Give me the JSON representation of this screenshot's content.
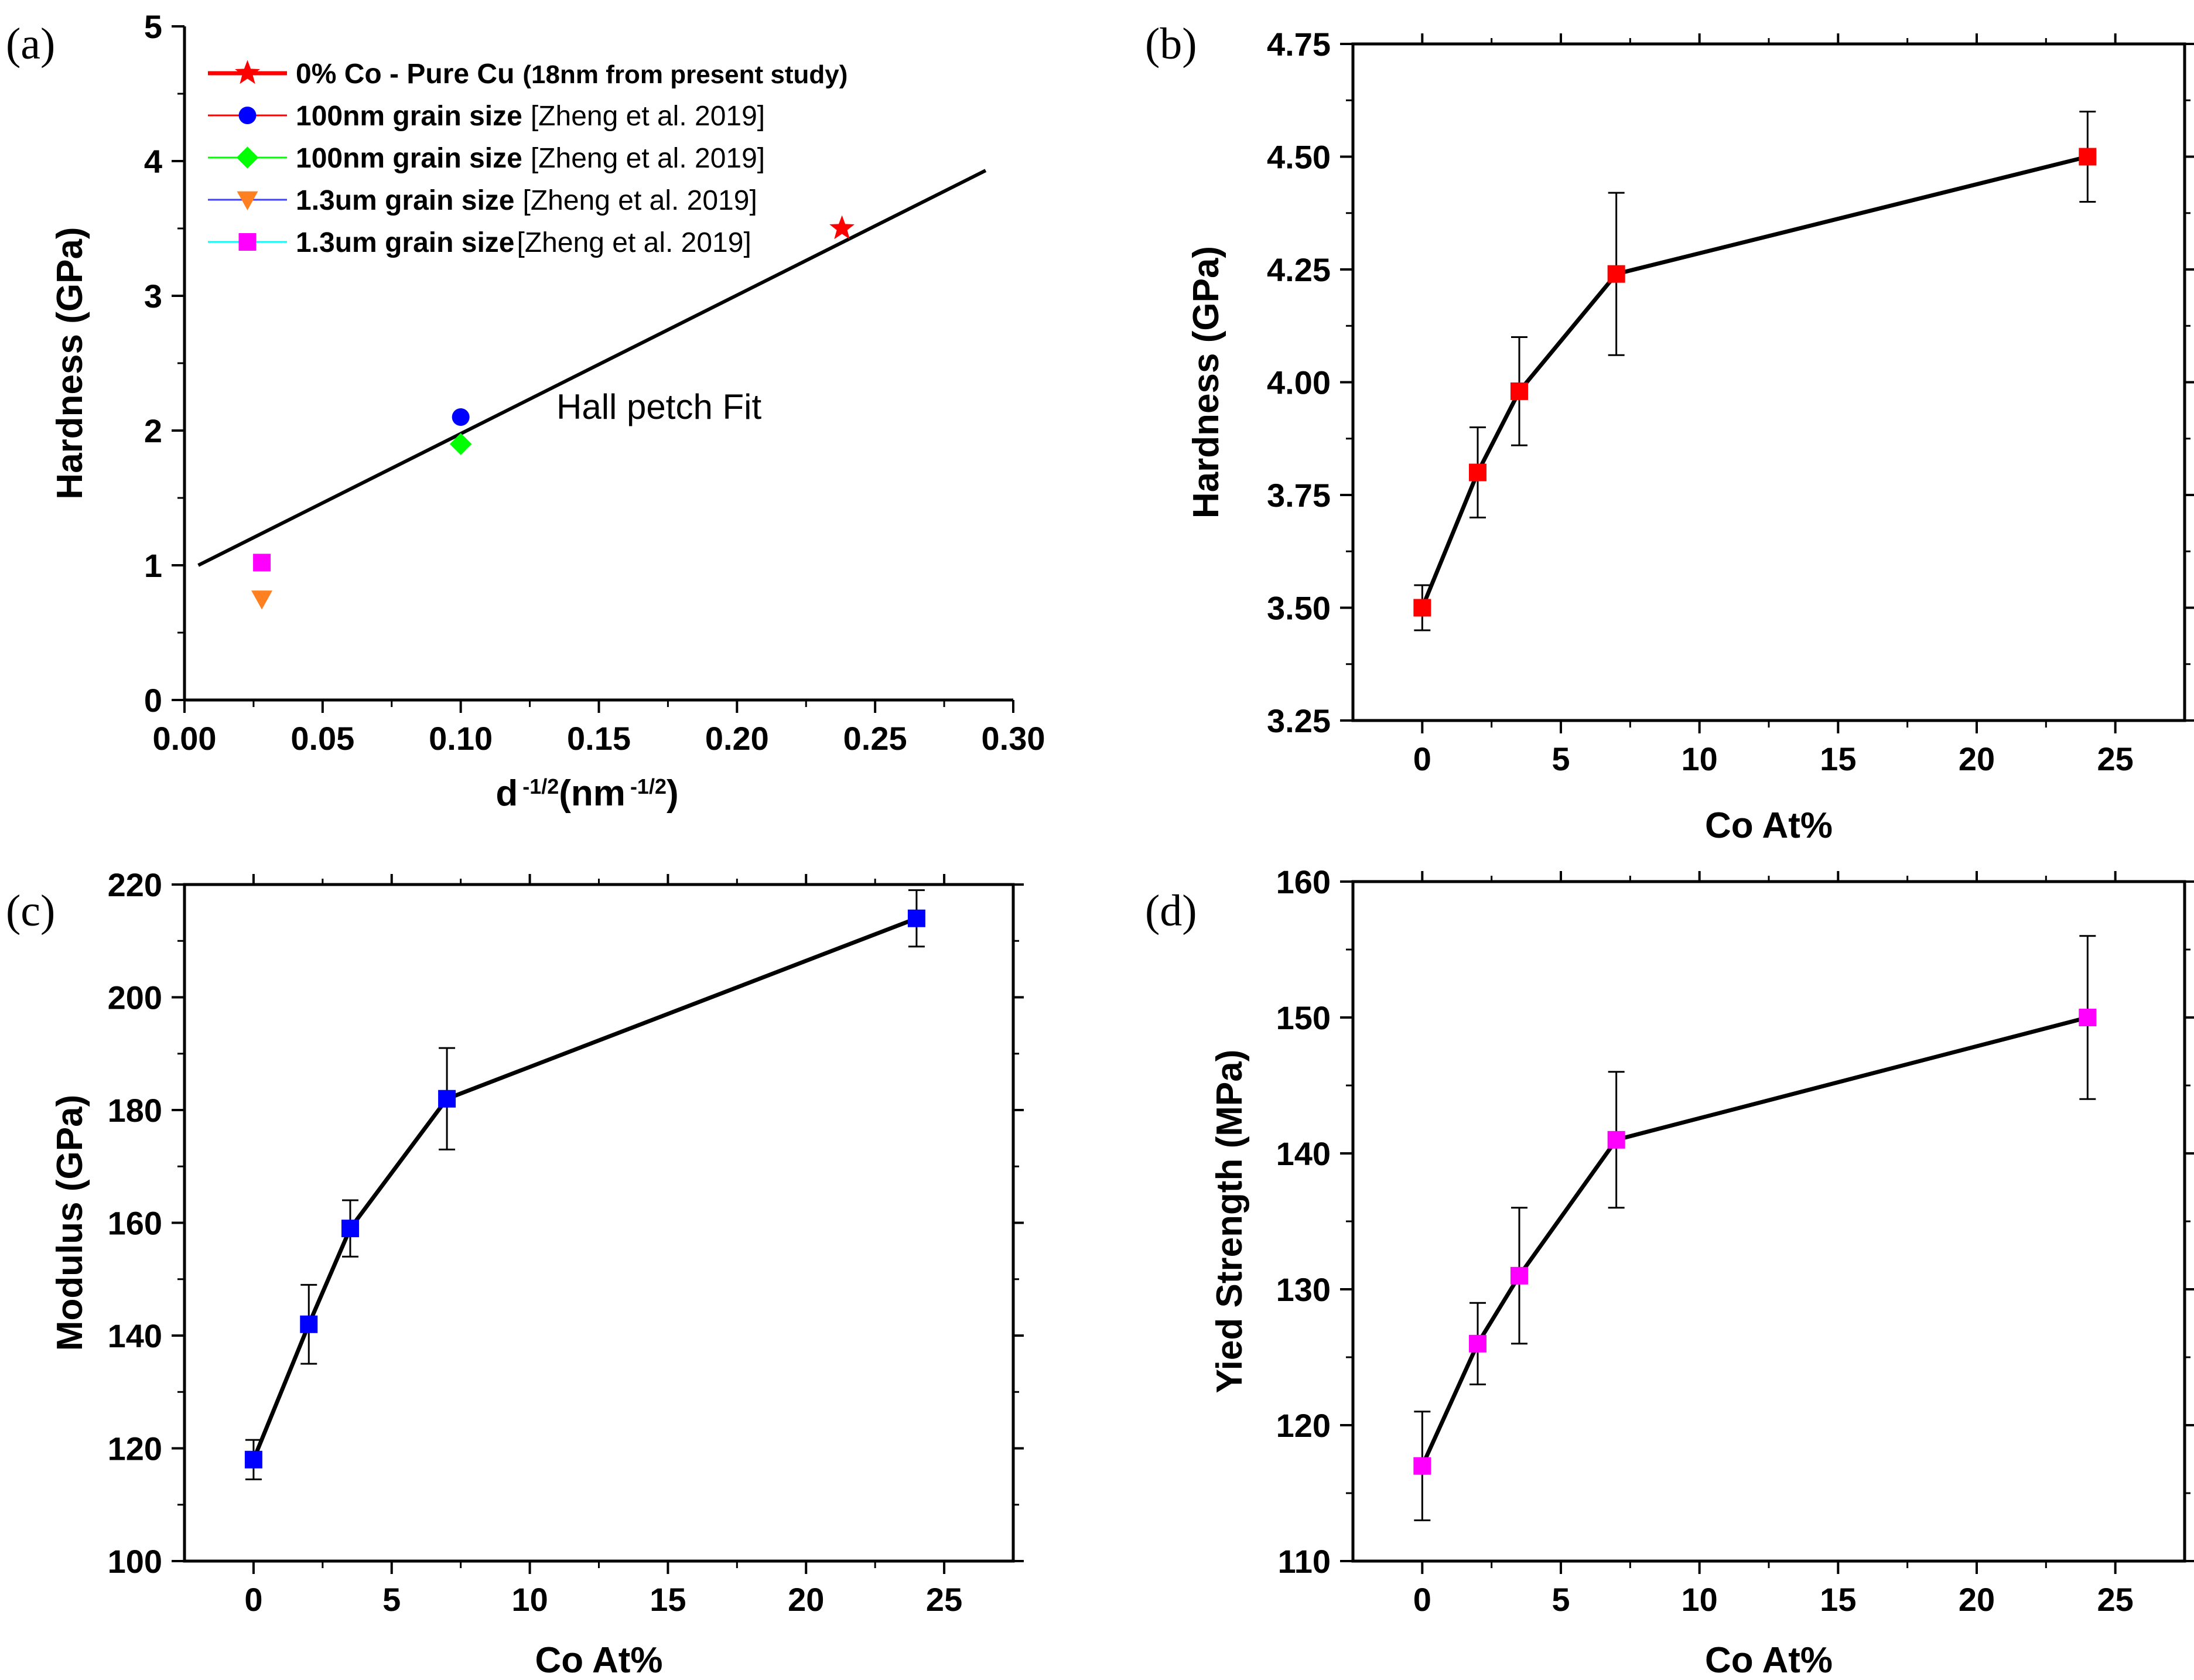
{
  "chart_data": [
    {
      "type": "scatter",
      "panel": "(a)",
      "xlabel": "d",
      "xlabel_sup1": "-1/2",
      "xlabel_unit": "(nm",
      "xlabel_sup2": "-1/2",
      "xlabel_close": ")",
      "ylabel": "Hardness (GPa)",
      "xlim": [
        0.0,
        0.3
      ],
      "ylim": [
        0,
        5
      ],
      "xticks": [
        "0.00",
        "0.05",
        "0.10",
        "0.15",
        "0.20",
        "0.25",
        "0.30"
      ],
      "yticks": [
        "0",
        "1",
        "2",
        "3",
        "4",
        "5"
      ],
      "series": [
        {
          "name": "0% Co - Pure Cu",
          "ref": "(18nm from present study)",
          "marker": "star",
          "color": "#ff0000",
          "x": [
            0.238
          ],
          "y": [
            3.5
          ]
        },
        {
          "name": "100nm grain size",
          "ref": "[Zheng et al. 2019]",
          "marker": "circle",
          "color": "#0000ff",
          "x": [
            0.1
          ],
          "y": [
            2.1
          ]
        },
        {
          "name": "100nm grain size",
          "ref": "[Zheng et al. 2019]",
          "marker": "diamond",
          "color": "#00ff00",
          "x": [
            0.1
          ],
          "y": [
            1.9
          ]
        },
        {
          "name": "1.3um grain size",
          "ref": "[Zheng et al. 2019]",
          "marker": "triangle-down",
          "color": "#ff8020",
          "x": [
            0.028
          ],
          "y": [
            0.75
          ]
        },
        {
          "name": "1.3um grain size",
          "ref": "[Zheng et al. 2019]",
          "marker": "square",
          "color": "#ff00ff",
          "x": [
            0.028
          ],
          "y": [
            1.02
          ]
        }
      ],
      "legend_line_colors": [
        "#ff0000",
        "#ff0000",
        "#00ff00",
        "#4040ff",
        "#00ffff"
      ],
      "fit": {
        "label": "Hall petch Fit",
        "x": [
          0.005,
          0.29
        ],
        "y": [
          1.0,
          3.93
        ]
      }
    },
    {
      "type": "line",
      "panel": "(b)",
      "xlabel": "Co At%",
      "ylabel": "Hardness (GPa)",
      "xlim": [
        -2.5,
        27.5
      ],
      "ylim": [
        3.25,
        4.75
      ],
      "xticks": [
        "0",
        "5",
        "10",
        "15",
        "20",
        "25"
      ],
      "yticks": [
        "3.25",
        "3.50",
        "3.75",
        "4.00",
        "4.25",
        "4.50",
        "4.75"
      ],
      "x": [
        0,
        2,
        3.5,
        7,
        24
      ],
      "y": [
        3.5,
        3.8,
        3.98,
        4.24,
        4.5
      ],
      "err": [
        0.05,
        0.1,
        0.12,
        0.18,
        0.1
      ],
      "color": "#ff0000"
    },
    {
      "type": "line",
      "panel": "(c)",
      "xlabel": "Co At%",
      "ylabel": "Modulus (GPa)",
      "xlim": [
        -2.5,
        27.5
      ],
      "ylim": [
        100,
        220
      ],
      "xticks": [
        "0",
        "5",
        "10",
        "15",
        "20",
        "25"
      ],
      "yticks": [
        "100",
        "120",
        "140",
        "160",
        "180",
        "200",
        "220"
      ],
      "x": [
        0,
        2,
        3.5,
        7,
        24
      ],
      "y": [
        118,
        142,
        159,
        182,
        214
      ],
      "err": [
        3.5,
        7,
        5,
        9,
        5
      ],
      "color": "#0000ff"
    },
    {
      "type": "line",
      "panel": "(d)",
      "xlabel": "Co At%",
      "ylabel": "Yied Strength (MPa)",
      "xlim": [
        -2.5,
        27.5
      ],
      "ylim": [
        110,
        160
      ],
      "xticks": [
        "0",
        "5",
        "10",
        "15",
        "20",
        "25"
      ],
      "yticks": [
        "110",
        "120",
        "130",
        "140",
        "150",
        "160"
      ],
      "x": [
        0,
        2,
        3.5,
        7,
        24
      ],
      "y": [
        117,
        126,
        131,
        141,
        150
      ],
      "err": [
        4,
        3,
        5,
        5,
        6
      ],
      "color": "#ff00ff"
    }
  ]
}
